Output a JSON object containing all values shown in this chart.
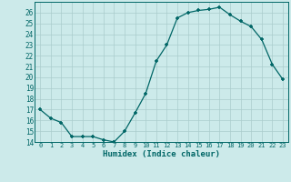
{
  "x": [
    0,
    1,
    2,
    3,
    4,
    5,
    6,
    7,
    8,
    9,
    10,
    11,
    12,
    13,
    14,
    15,
    16,
    17,
    18,
    19,
    20,
    21,
    22,
    23
  ],
  "y": [
    17.0,
    16.2,
    15.8,
    14.5,
    14.5,
    14.5,
    14.2,
    14.0,
    15.0,
    16.7,
    18.5,
    21.5,
    23.0,
    25.5,
    26.0,
    26.2,
    26.3,
    26.5,
    25.8,
    25.2,
    24.7,
    23.5,
    21.2,
    19.8
  ],
  "title": "",
  "xlabel": "Humidex (Indice chaleur)",
  "ylabel": "",
  "bg_color": "#cceaea",
  "grid_color": "#aacccc",
  "line_color": "#006666",
  "marker_color": "#006666",
  "ylim": [
    14,
    27
  ],
  "yticks": [
    14,
    15,
    16,
    17,
    18,
    19,
    20,
    21,
    22,
    23,
    24,
    25,
    26
  ],
  "xticks": [
    0,
    1,
    2,
    3,
    4,
    5,
    6,
    7,
    8,
    9,
    10,
    11,
    12,
    13,
    14,
    15,
    16,
    17,
    18,
    19,
    20,
    21,
    22,
    23
  ],
  "xtick_labels": [
    "0",
    "1",
    "2",
    "3",
    "4",
    "5",
    "6",
    "7",
    "8",
    "9",
    "10",
    "11",
    "12",
    "13",
    "14",
    "15",
    "16",
    "17",
    "18",
    "19",
    "20",
    "21",
    "22",
    "23"
  ]
}
